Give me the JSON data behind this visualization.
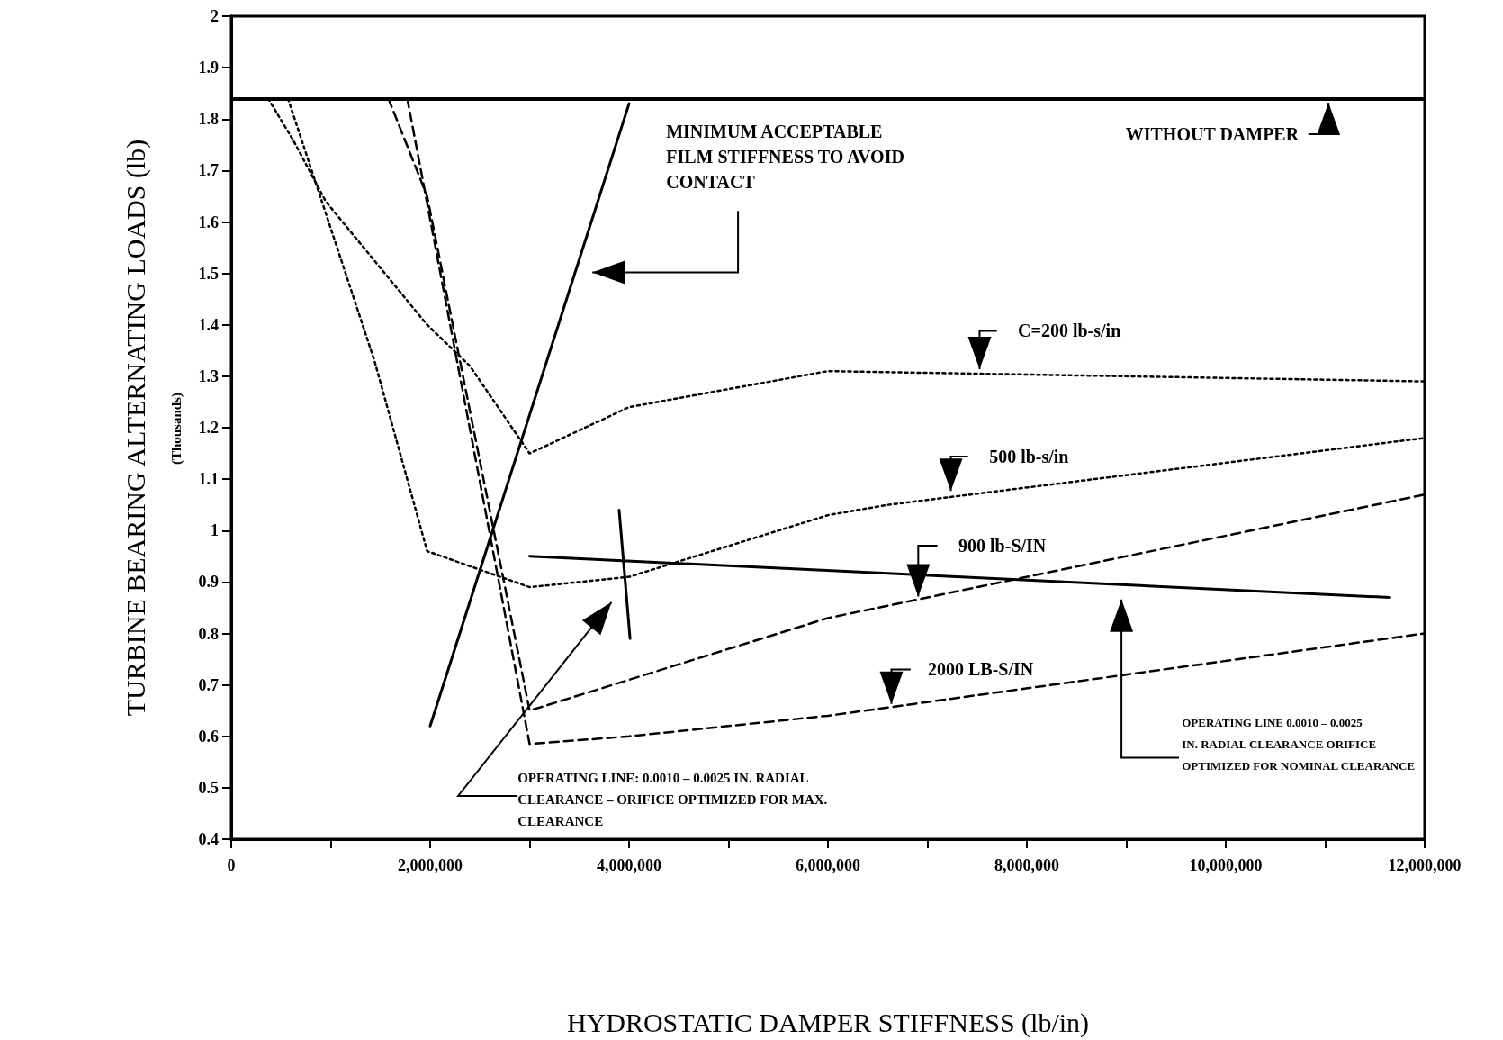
{
  "chart_data": {
    "type": "line",
    "xlabel": "HYDROSTATIC DAMPER STIFFNESS (lb/in)",
    "ylabel": "TURBINE BEARING ALTERNATING LOADS (lb)",
    "annotations": [
      "(Thousands)"
    ],
    "xlim": [
      0,
      12000000
    ],
    "ylim": [
      0.4,
      2
    ],
    "xticks": [
      0,
      {
        "value": 1000000,
        "label": null
      },
      {
        "value": 2000000,
        "label": "2,000,000"
      },
      {
        "value": 3000000,
        "label": null
      },
      {
        "value": 4000000,
        "label": "4,000,000"
      },
      {
        "value": 5000000,
        "label": null
      },
      {
        "value": 6000000,
        "label": "6,000,000"
      },
      {
        "value": 7000000,
        "label": null
      },
      {
        "value": 8000000,
        "label": "8,000,000"
      },
      {
        "value": 9000000,
        "label": null
      },
      {
        "value": 10000000,
        "label": "10,000,000"
      },
      {
        "value": 11000000,
        "label": null
      },
      {
        "value": 12000000,
        "label": "12,000,000"
      }
    ],
    "yticks": [
      0.4,
      0.5,
      0.6,
      0.7,
      0.8,
      0.9,
      1,
      1.1,
      1.2,
      1.3,
      1.4,
      1.5,
      1.6,
      1.7,
      1.8,
      1.9,
      2
    ],
    "marker": "none",
    "ref_lines": [
      {
        "axis": "y",
        "value": 1.84,
        "label": "WITHOUT DAMPER",
        "color": "#000000",
        "line_style": "solid"
      }
    ],
    "series": [
      {
        "name": "C=200 lb-s/in",
        "color": "#000000",
        "line_style": "dotted",
        "x": [
          370000,
          620000,
          950000,
          1970000,
          2400000,
          3000000,
          4000000,
          6000000,
          12000000
        ],
        "values": [
          1.84,
          1.76,
          1.64,
          1.4,
          1.32,
          1.15,
          1.24,
          1.31,
          1.29
        ]
      },
      {
        "name": "500 lb-s/in",
        "color": "#000000",
        "line_style": "dotted",
        "x": [
          570000,
          860000,
          1440000,
          1970000,
          3000000,
          4000000,
          6000000,
          6600000,
          12000000
        ],
        "values": [
          1.84,
          1.67,
          1.33,
          0.96,
          0.89,
          0.91,
          1.03,
          1.05,
          1.18
        ]
      },
      {
        "name": "900 lb-S/IN",
        "color": "#000000",
        "line_style": "dashed",
        "x": [
          1580000,
          1970000,
          3000000,
          4000000,
          6000000,
          12000000
        ],
        "values": [
          1.84,
          1.65,
          0.65,
          0.71,
          0.83,
          1.07
        ]
      },
      {
        "name": "2000 LB-S/IN",
        "color": "#000000",
        "line_style": "dashed",
        "x": [
          1770000,
          3000000,
          4000000,
          6000000,
          12000000
        ],
        "values": [
          1.84,
          0.585,
          0.6,
          0.64,
          0.8
        ]
      },
      {
        "name": "MINIMUM ACCEPTABLE FILM STIFFNESS TO AVOID CONTACT",
        "color": "#000000",
        "line_style": "solid",
        "x": [
          2000000,
          4000000
        ],
        "values": [
          0.62,
          1.83
        ]
      },
      {
        "name": "OPERATING LINE: 0.0010 – 0.0025 IN. RADIAL CLEARANCE – ORIFICE OPTIMIZED FOR MAX. CLEARANCE",
        "color": "#000000",
        "line_style": "solid",
        "x": [
          3900000,
          4010000
        ],
        "values": [
          1.04,
          0.79
        ]
      },
      {
        "name": "OPERATING LINE 0.0010 – 0.0025 IN. RADIAL CLEARANCE ORIFICE OPTIMIZED FOR NOMINAL CLEARANCE",
        "color": "#000000",
        "line_style": "solid",
        "x": [
          3000000,
          11650000
        ],
        "values": [
          0.95,
          0.87
        ]
      }
    ]
  }
}
